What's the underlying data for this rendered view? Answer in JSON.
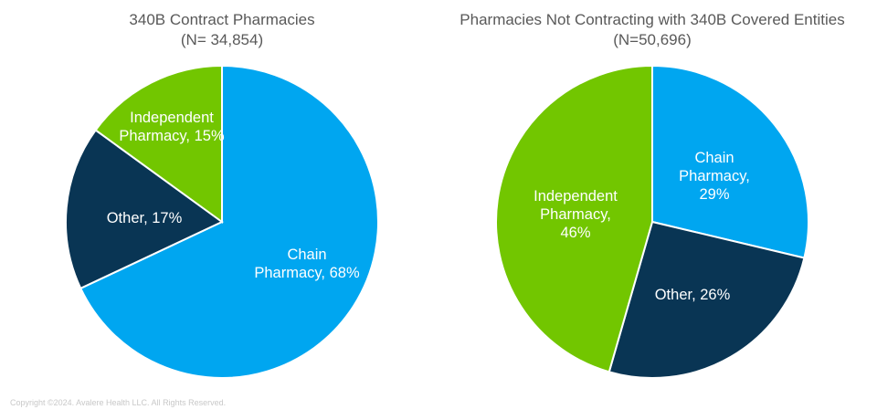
{
  "chart_data": [
    {
      "type": "pie",
      "title": "340B Contract Pharmacies",
      "subtitle": "(N= 34,854)",
      "slices": [
        {
          "label": "Chain Pharmacy",
          "value": 68,
          "text": [
            "Chain",
            "Pharmacy, 68%"
          ],
          "color": "#00A6F0"
        },
        {
          "label": "Other",
          "value": 17,
          "text": [
            "Other, 17%"
          ],
          "color": "#093554"
        },
        {
          "label": "Independent Pharmacy",
          "value": 15,
          "text": [
            "Independent",
            "Pharmacy, 15%"
          ],
          "color": "#72C600"
        }
      ]
    },
    {
      "type": "pie",
      "title": "Pharmacies Not Contracting with 340B Covered Entities",
      "subtitle": "(N=50,696)",
      "slices": [
        {
          "label": "Chain Pharmacy",
          "value": 29,
          "text": [
            "Chain",
            "Pharmacy,",
            "29%"
          ],
          "color": "#00A6F0"
        },
        {
          "label": "Other",
          "value": 26,
          "text": [
            "Other, 26%"
          ],
          "color": "#093554"
        },
        {
          "label": "Independent Pharmacy",
          "value": 46,
          "text": [
            "Independent",
            "Pharmacy,",
            "46%"
          ],
          "color": "#72C600"
        }
      ]
    }
  ],
  "footer": {
    "copyright": "Copyright ©2024. Avalere Health LLC. All Rights Reserved."
  }
}
